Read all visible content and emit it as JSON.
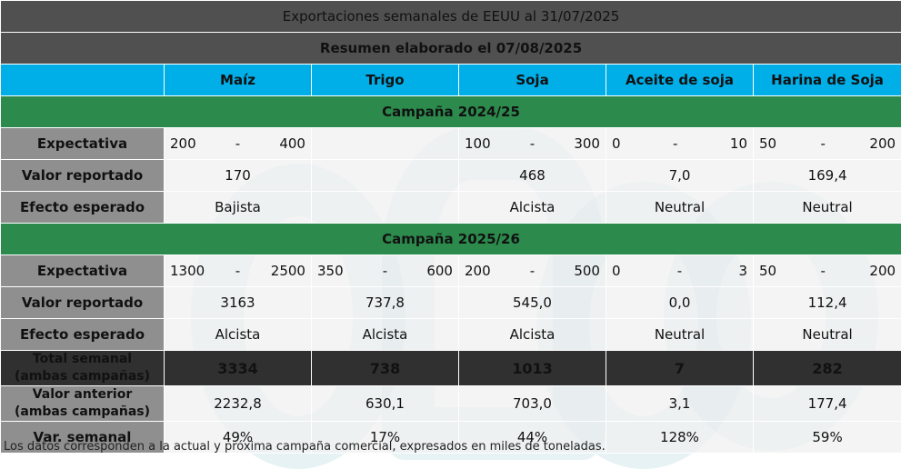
{
  "title": "Exportaciones semanales de EEUU al 31/07/2025",
  "subtitle": "Resumen elaborado el 07/08/2025",
  "columns": [
    "Maíz",
    "Trigo",
    "Soja",
    "Aceite de soja",
    "Harina de Soja"
  ],
  "row_labels": {
    "expectativa": "Expectativa",
    "valor_reportado": "Valor reportado",
    "efecto_esperado": "Efecto esperado",
    "total_semanal": "Total semanal (ambas campañas)",
    "valor_anterior": "Valor anterior (ambas campañas)",
    "var_semanal": "Var. semanal"
  },
  "campaign1": {
    "label": "Campaña 2024/25",
    "expectativa": [
      {
        "lo": "200",
        "sep": "-",
        "hi": "400"
      },
      {
        "lo": "",
        "sep": "",
        "hi": ""
      },
      {
        "lo": "100",
        "sep": "-",
        "hi": "300"
      },
      {
        "lo": "0",
        "sep": "-",
        "hi": "10"
      },
      {
        "lo": "50",
        "sep": "-",
        "hi": "200"
      }
    ],
    "valor_reportado": [
      "170",
      "",
      "468",
      "7,0",
      "169,4"
    ],
    "efecto_esperado": [
      "Bajista",
      "",
      "Alcista",
      "Neutral",
      "Neutral"
    ]
  },
  "campaign2": {
    "label": "Campaña 2025/26",
    "expectativa": [
      {
        "lo": "1300",
        "sep": "-",
        "hi": "2500"
      },
      {
        "lo": "350",
        "sep": "-",
        "hi": "600"
      },
      {
        "lo": "200",
        "sep": "-",
        "hi": "500"
      },
      {
        "lo": "0",
        "sep": "-",
        "hi": "3"
      },
      {
        "lo": "50",
        "sep": "-",
        "hi": "200"
      }
    ],
    "valor_reportado": [
      "3163",
      "737,8",
      "545,0",
      "0,0",
      "112,4"
    ],
    "efecto_esperado": [
      "Alcista",
      "Alcista",
      "Alcista",
      "Neutral",
      "Neutral"
    ]
  },
  "total_semanal": [
    "3334",
    "738",
    "1013",
    "7",
    "282"
  ],
  "valor_anterior": [
    "2232,8",
    "630,1",
    "703,0",
    "3,1",
    "177,4"
  ],
  "var_semanal": [
    "49%",
    "17%",
    "44%",
    "128%",
    "59%"
  ],
  "effect_colors": {
    "Bajista": "#d40000",
    "Alcista": "#00a000",
    "Neutral": "#00a3d9"
  },
  "footnote": "Los datos corresponden a la actual y próxima campaña comercial, expresados en miles de toneladas."
}
